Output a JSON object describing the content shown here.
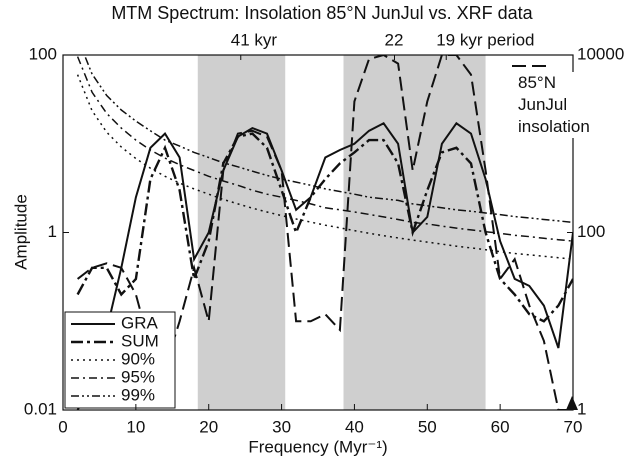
{
  "chart_data": {
    "type": "line",
    "title": "MTM Spectrum: Insolation 85°N JunJul vs. XRF data",
    "xlabel": "Frequency (Myr⁻¹)",
    "ylabel": "Amplitude",
    "log_y": true,
    "xlim": [
      0,
      70
    ],
    "xticks": [
      0,
      10,
      20,
      30,
      40,
      50,
      60,
      70
    ],
    "ylim": [
      0.01,
      100
    ],
    "yticks": [
      0.01,
      1,
      100
    ],
    "y2lim": [
      1,
      10000
    ],
    "y2ticks": [
      1,
      100,
      10000
    ],
    "top_ticks": [
      {
        "value": 24.4,
        "label": "41 kyr"
      },
      {
        "value": 45.5,
        "label": "22"
      },
      {
        "value": 52.6,
        "label": "19 kyr period"
      }
    ],
    "bands": [
      [
        18.5,
        30.5
      ],
      [
        38.5,
        58
      ]
    ],
    "legend": "lower left",
    "x": [
      2,
      4,
      6,
      8,
      10,
      12,
      14,
      16,
      18,
      20,
      22,
      24,
      26,
      28,
      30,
      32,
      34,
      36,
      38,
      40,
      42,
      44,
      46,
      48,
      50,
      52,
      54,
      56,
      58,
      60,
      62,
      64,
      66,
      68,
      70
    ],
    "series": [
      {
        "name": "GRA",
        "color": "#111111",
        "values": [
          0.01,
          0.02,
          0.08,
          0.4,
          2.5,
          9,
          13,
          7,
          0.5,
          1,
          5,
          12,
          15,
          13,
          5,
          1.8,
          2.5,
          7,
          8.5,
          10,
          14,
          17,
          10,
          1,
          1.5,
          10,
          17,
          13,
          4,
          0.8,
          0.3,
          0.25,
          0.15,
          0.05,
          1
        ]
      },
      {
        "name": "SUM",
        "color": "#111111",
        "values": [
          0.2,
          0.4,
          0.4,
          0.2,
          0.3,
          4,
          9,
          3,
          0.3,
          0.8,
          6,
          12,
          13,
          9,
          3,
          1,
          2.5,
          4,
          6,
          8,
          11,
          11,
          6,
          1,
          3,
          8,
          9,
          6,
          1,
          0.3,
          0.2,
          0.12,
          0.1,
          0.15,
          0.3
        ]
      },
      {
        "name": "90%",
        "color": "#111111",
        "values": [
          60,
          23.5,
          13.5,
          9.2,
          6.8,
          5.3,
          4.3,
          3.6,
          3.1,
          2.7,
          2.36,
          2.1,
          1.88,
          1.7,
          1.55,
          1.42,
          1.31,
          1.21,
          1.13,
          1.05,
          0.98,
          0.92,
          0.87,
          0.82,
          0.78,
          0.74,
          0.7,
          0.67,
          0.64,
          0.61,
          0.58,
          0.56,
          0.54,
          0.52,
          0.5
        ]
      },
      {
        "name": "95%",
        "color": "#111111",
        "values": [
          96,
          38,
          22,
          15,
          11,
          8.5,
          6.9,
          5.8,
          5,
          4.3,
          3.8,
          3.4,
          3,
          2.7,
          2.5,
          2.3,
          2.1,
          1.9,
          1.8,
          1.7,
          1.6,
          1.5,
          1.4,
          1.3,
          1.25,
          1.18,
          1.12,
          1.07,
          1.02,
          0.98,
          0.93,
          0.9,
          0.86,
          0.83,
          0.8
        ]
      },
      {
        "name": "99%",
        "color": "#111111",
        "values": [
          156,
          61,
          35,
          24,
          18,
          14,
          11,
          9.4,
          8,
          7,
          6.1,
          5.5,
          4.9,
          4.4,
          4,
          3.7,
          3.4,
          3.1,
          2.9,
          2.7,
          2.5,
          2.4,
          2.3,
          2.1,
          2,
          1.9,
          1.8,
          1.74,
          1.66,
          1.59,
          1.51,
          1.46,
          1.4,
          1.35,
          1.3
        ]
      },
      {
        "name": "85°N JunJul insolation",
        "color": "#111111",
        "axis": "y2",
        "values": [
          30,
          40,
          45,
          40,
          20,
          5,
          3,
          10,
          40,
          10,
          500,
          1300,
          1400,
          1200,
          500,
          10,
          10,
          12,
          8,
          3000,
          9000,
          10000,
          8000,
          500,
          3000,
          10000,
          10000,
          6000,
          500,
          30,
          50,
          15,
          6,
          1,
          1
        ]
      }
    ]
  }
}
